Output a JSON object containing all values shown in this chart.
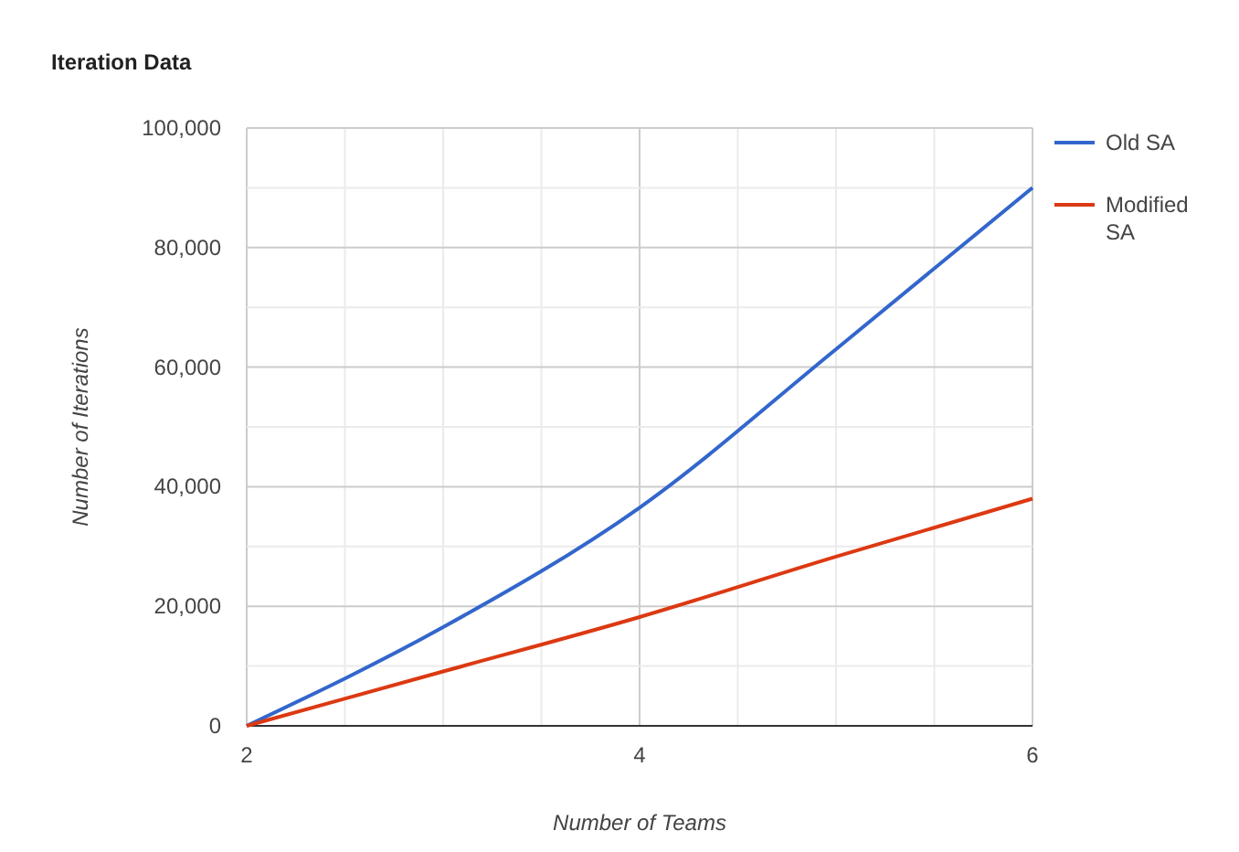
{
  "chart_data": {
    "type": "line",
    "title": "Iteration Data",
    "xlabel": "Number of Teams",
    "ylabel": "Number of Iterations",
    "x": [
      2,
      3,
      4,
      5,
      6
    ],
    "series": [
      {
        "name": "Old SA",
        "color": "#3366cc",
        "values": [
          0,
          16500,
          36500,
          63000,
          90000
        ]
      },
      {
        "name": "Modified SA",
        "color": "#dc3912",
        "values": [
          0,
          9100,
          18200,
          28300,
          38000
        ]
      }
    ],
    "xlim": [
      2,
      6
    ],
    "xticks": [
      2,
      4,
      6
    ],
    "ylim": [
      0,
      100000
    ],
    "yticks": [
      {
        "value": 0,
        "label": "0"
      },
      {
        "value": 20000,
        "label": "20,000"
      },
      {
        "value": 40000,
        "label": "40,000"
      },
      {
        "value": 60000,
        "label": "60,000"
      },
      {
        "value": 80000,
        "label": "80,000"
      },
      {
        "value": 100000,
        "label": "100,000"
      }
    ],
    "grid": true,
    "legend": "top right",
    "line_style": "solid",
    "marker": "none"
  }
}
